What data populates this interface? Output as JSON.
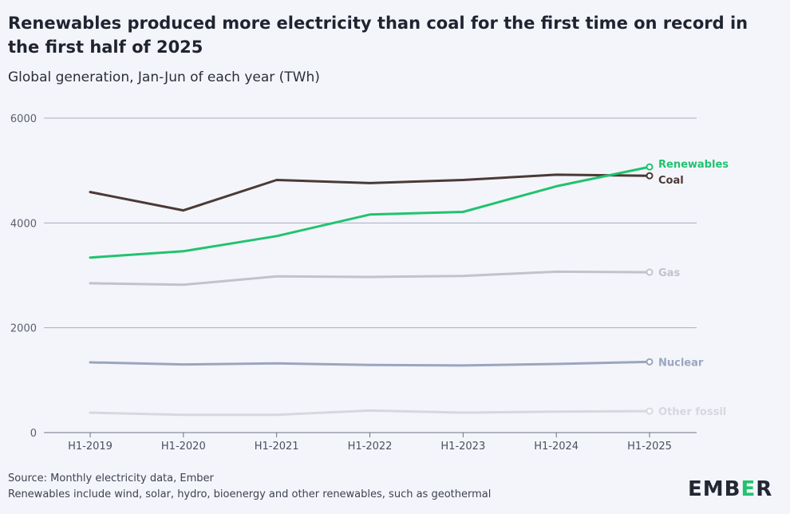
{
  "title": "Renewables produced more electricity than coal for the first time on record in the first half of 2025",
  "subtitle": "Global generation, Jan-Jun of each year (TWh)",
  "source": "Source: Monthly electricity data, Ember",
  "note": "Renewables include wind, solar, hydro, bioenergy and other renewables, such as geothermal",
  "logo": {
    "left": "EMB",
    "accent": "E",
    "right": "R"
  },
  "chart_data": {
    "type": "line",
    "categories": [
      "H1-2019",
      "H1-2020",
      "H1-2021",
      "H1-2022",
      "H1-2023",
      "H1-2024",
      "H1-2025"
    ],
    "ylim": [
      0,
      6000
    ],
    "yticks": [
      "0",
      "2000",
      "4000",
      "6000"
    ],
    "grid": true,
    "legend": "end-of-line labels",
    "series": [
      {
        "name": "Other fossil",
        "color": "#d7d8df",
        "values": [
          380,
          340,
          340,
          420,
          380,
          400,
          410
        ]
      },
      {
        "name": "Nuclear",
        "color": "#9aa6bf",
        "values": [
          1340,
          1300,
          1320,
          1290,
          1280,
          1310,
          1350
        ]
      },
      {
        "name": "Gas",
        "color": "#c3c2cc",
        "values": [
          2850,
          2820,
          2980,
          2970,
          2990,
          3070,
          3060
        ]
      },
      {
        "name": "Coal",
        "color": "#4a3a36",
        "values": [
          4590,
          4240,
          4820,
          4760,
          4820,
          4920,
          4900
        ]
      },
      {
        "name": "Renewables",
        "color": "#21c36f",
        "values": [
          3340,
          3460,
          3750,
          4160,
          4210,
          4700,
          5070
        ]
      }
    ]
  }
}
